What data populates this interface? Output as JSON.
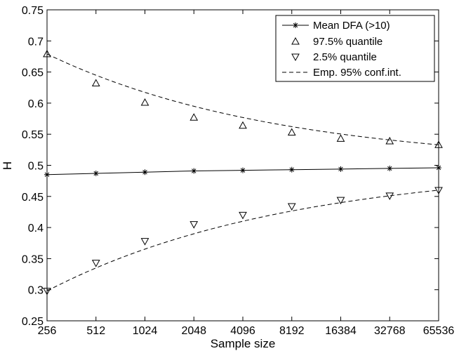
{
  "chart_data": {
    "type": "line",
    "xscale": "log2",
    "xlabel": "Sample size",
    "ylabel": "H",
    "categories": [
      "256",
      "512",
      "1024",
      "2048",
      "4096",
      "8192",
      "16384",
      "32768",
      "65536"
    ],
    "x": [
      256,
      512,
      1024,
      2048,
      4096,
      8192,
      16384,
      32768,
      65536
    ],
    "ylim": [
      0.25,
      0.75
    ],
    "yticks": [
      "0.25",
      "0.3",
      "0.35",
      "0.4",
      "0.45",
      "0.5",
      "0.55",
      "0.6",
      "0.65",
      "0.7",
      "0.75"
    ],
    "grid": false,
    "legend_position": "top-right",
    "series": [
      {
        "name": "Mean DFA (>10)",
        "marker": "asterisk",
        "line": "solid",
        "values": [
          0.485,
          0.487,
          0.489,
          0.491,
          0.492,
          0.493,
          0.494,
          0.495,
          0.496
        ]
      },
      {
        "name": "97.5% quantile",
        "marker": "triangle-up",
        "line": "none",
        "values": [
          0.679,
          0.632,
          0.601,
          0.577,
          0.564,
          0.553,
          0.543,
          0.539,
          0.533
        ]
      },
      {
        "name": "2.5% quantile",
        "marker": "triangle-down",
        "line": "none",
        "values": [
          0.298,
          0.343,
          0.378,
          0.405,
          0.42,
          0.434,
          0.444,
          0.451,
          0.46
        ]
      },
      {
        "name": "Emp. 95% conf.int.",
        "marker": "none",
        "line": "dashed",
        "fit_of": [
          "97.5% quantile",
          "2.5% quantile"
        ]
      }
    ]
  }
}
